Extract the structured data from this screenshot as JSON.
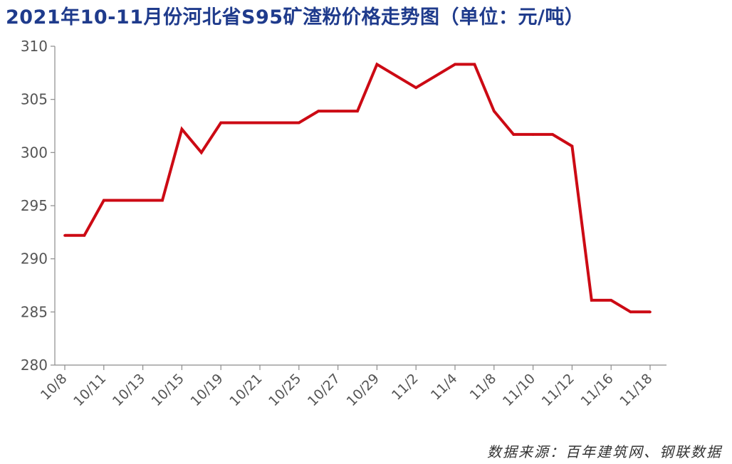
{
  "colors": {
    "line": "#cc0a14",
    "title": "#1f3b8c",
    "axis": "#8c8c8c",
    "tick_text": "#555555"
  },
  "source_note": "数据来源：百年建筑网、钢联数据",
  "chart_data": {
    "type": "line",
    "title": "2021年10-11月份河北省S95矿渣粉价格走势图（单位：元/吨）",
    "xlabel": "",
    "ylabel": "",
    "ylim": [
      280,
      310
    ],
    "yticks": [
      280,
      285,
      290,
      295,
      300,
      305,
      310
    ],
    "grid": false,
    "legend": "none",
    "categories": [
      "10/8",
      "",
      "10/11",
      "",
      "10/13",
      "",
      "10/15",
      "",
      "10/19",
      "",
      "10/21",
      "",
      "10/25",
      "",
      "10/27",
      "",
      "10/29",
      "",
      "11/2",
      "",
      "11/4",
      "",
      "11/8",
      "",
      "11/10",
      "",
      "11/12",
      "",
      "11/16",
      "",
      "11/18"
    ],
    "series": [
      {
        "values": [
          292.2,
          292.2,
          295.5,
          295.5,
          295.5,
          295.5,
          302.2,
          300,
          302.8,
          302.8,
          302.8,
          302.8,
          302.8,
          303.9,
          303.9,
          303.9,
          308.3,
          307.2,
          306.1,
          307.2,
          308.3,
          308.3,
          303.9,
          301.7,
          301.7,
          301.7,
          300.6,
          286.1,
          286.1,
          285,
          285
        ]
      }
    ]
  }
}
